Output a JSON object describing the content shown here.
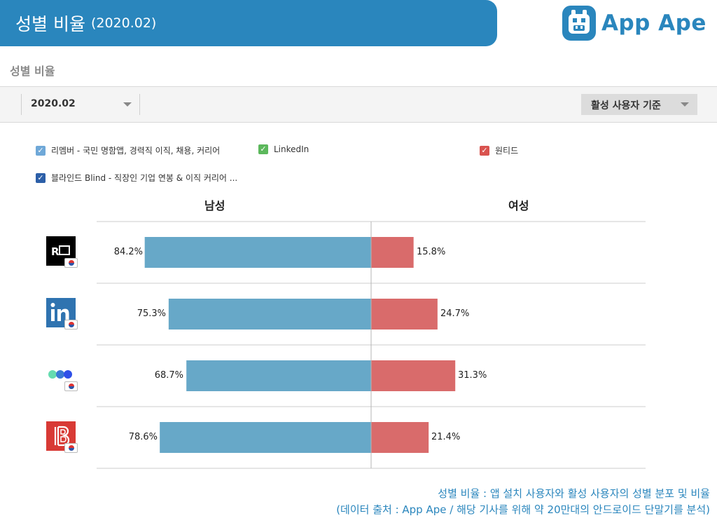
{
  "header": {
    "title": "성별 비율",
    "period": "(2020.02)"
  },
  "logo": {
    "text": "App Ape"
  },
  "section_title": "성별 비율",
  "toolbar": {
    "period_value": "2020.02",
    "basis_label": "활성 사용자 기준"
  },
  "legend": [
    {
      "label": "리멤버 - 국민 명함앱, 경력직 이직, 채용, 커리어",
      "color": "#6fa8d8"
    },
    {
      "label": "LinkedIn",
      "color": "#5cb85c"
    },
    {
      "label": "원티드",
      "color": "#d9534f"
    },
    {
      "label": "블라인드 Blind - 직장인 기업 연봉 & 이직 커리어 ...",
      "color": "#2c5fa8"
    }
  ],
  "colors": {
    "male": "#67a8c8",
    "female": "#d96b6b",
    "brand": "#2a86bd"
  },
  "chart_data": {
    "type": "bar",
    "orientation": "horizontal-diverging",
    "series": [
      {
        "name": "남성",
        "values": [
          84.2,
          75.3,
          68.7,
          78.6
        ],
        "color": "#67a8c8"
      },
      {
        "name": "여성",
        "values": [
          15.8,
          24.7,
          31.3,
          21.4
        ],
        "color": "#d96b6b"
      }
    ],
    "value_labels": {
      "male": [
        "84.2%",
        "75.3%",
        "68.7%",
        "78.6%"
      ],
      "female": [
        "15.8%",
        "24.7%",
        "31.3%",
        "21.4%"
      ]
    },
    "category_icons": [
      "remember-app-icon",
      "linkedin-app-icon",
      "wanted-app-icon",
      "blind-app-icon"
    ],
    "column_labels": {
      "male": "남성",
      "female": "여성"
    },
    "xlim": [
      -100,
      100
    ],
    "grid": "horizontal-row-dividers"
  },
  "footnote": {
    "line1": "성별 비율 : 앱 설치 사용자와 활성 사용자의 성별 분포 및 비율",
    "line2": "(데이터 출처 : App Ape / 해당 기사를 위해 약 20만대의 안드로이드 단말기를 분석)"
  }
}
